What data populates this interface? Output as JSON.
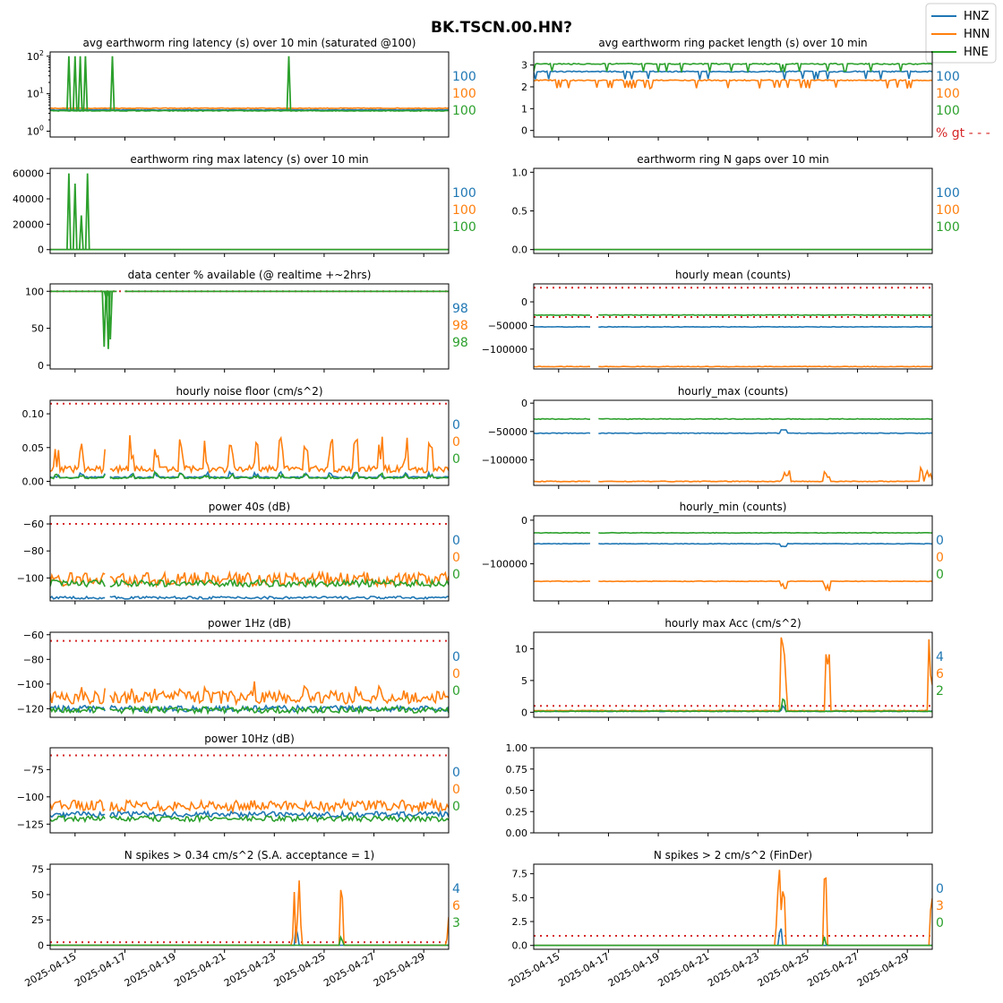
{
  "figure": {
    "title": "BK.TSCN.00.HN?",
    "legend": {
      "placement": "top-right",
      "entries": [
        {
          "name": "HNZ",
          "color": "#1f77b4"
        },
        {
          "name": "HNN",
          "color": "#ff7f0e"
        },
        {
          "name": "HNE",
          "color": "#2ca02c"
        }
      ]
    },
    "x_tick_labels": [
      "2025-04-15",
      "2025-04-17",
      "2025-04-19",
      "2025-04-21",
      "2025-04-23",
      "2025-04-25",
      "2025-04-27",
      "2025-04-29"
    ],
    "colors": {
      "threshold": "#d62728",
      "series": [
        "#1f77b4",
        "#ff7f0e",
        "#2ca02c"
      ]
    }
  },
  "chart_data": [
    {
      "id": "p1",
      "type": "line",
      "title": "avg earthworm ring latency (s)   over 10 min (saturated @100)",
      "yscale": "log",
      "ylim": [
        0.7,
        130
      ],
      "yticks": [
        1,
        10,
        100
      ],
      "ytick_labels": [
        "10^0",
        "10^1",
        "10^2"
      ],
      "xlim": [
        "2025-04-14",
        "2025-04-30"
      ],
      "series": [
        {
          "name": "HNZ",
          "baseline": 3.7
        },
        {
          "name": "HNN",
          "baseline": 4.1
        },
        {
          "name": "HNE",
          "baseline": 3.5
        }
      ],
      "spikes": [
        {
          "x": "2025-04-14T18:00",
          "y": 100
        },
        {
          "x": "2025-04-15T00:00",
          "y": 100
        },
        {
          "x": "2025-04-15T05:00",
          "y": 100
        },
        {
          "x": "2025-04-15T10:00",
          "y": 100
        },
        {
          "x": "2025-04-16T12:00",
          "y": 100
        },
        {
          "x": "2025-04-23T14:00",
          "y": 100
        }
      ],
      "right_labels": [
        "100",
        "100",
        "100"
      ]
    },
    {
      "id": "p2",
      "type": "line",
      "title": "avg earthworm ring packet length (s)   over 10 min",
      "ylim": [
        -0.3,
        3.6
      ],
      "yticks": [
        0,
        1,
        2,
        3
      ],
      "ytick_labels": [
        "0",
        "1",
        "2",
        "3"
      ],
      "xlim": [
        "2025-04-14",
        "2025-04-30"
      ],
      "series": [
        {
          "name": "HNZ",
          "baseline": 2.7
        },
        {
          "name": "HNN",
          "baseline": 2.3
        },
        {
          "name": "HNE",
          "baseline": 3.05
        }
      ],
      "right_labels": [
        "100",
        "100",
        "100"
      ],
      "extra_label": "% gt - - -"
    },
    {
      "id": "p3",
      "type": "line",
      "title": "earthworm ring max latency (s)   over 10 min",
      "ylim": [
        -3000,
        64000
      ],
      "yticks": [
        0,
        20000,
        40000,
        60000
      ],
      "ytick_labels": [
        "0",
        "20000",
        "40000",
        "60000"
      ],
      "xlim": [
        "2025-04-14",
        "2025-04-30"
      ],
      "series": [
        {
          "name": "HNZ",
          "baseline": 0
        },
        {
          "name": "HNN",
          "baseline": 0
        },
        {
          "name": "HNE",
          "baseline": 0
        }
      ],
      "spikes": [
        {
          "x": "2025-04-14T18:00",
          "y": 60000
        },
        {
          "x": "2025-04-15T00:00",
          "y": 52000
        },
        {
          "x": "2025-04-15T06:00",
          "y": 27000
        },
        {
          "x": "2025-04-15T12:00",
          "y": 60000
        }
      ],
      "right_labels": [
        "100",
        "100",
        "100"
      ]
    },
    {
      "id": "p4",
      "type": "line",
      "title": "earthworm ring N gaps   over 10 min",
      "ylim": [
        -0.05,
        1.05
      ],
      "yticks": [
        0,
        0.5,
        1
      ],
      "ytick_labels": [
        "0.0",
        "0.5",
        "1.0"
      ],
      "xlim": [
        "2025-04-14",
        "2025-04-30"
      ],
      "series": [
        {
          "name": "HNZ",
          "baseline": 0
        },
        {
          "name": "HNN",
          "baseline": 0
        },
        {
          "name": "HNE",
          "baseline": 0
        }
      ],
      "right_labels": [
        "100",
        "100",
        "100"
      ]
    },
    {
      "id": "p5",
      "type": "line",
      "title": "data center % available (@ realtime +~2hrs)",
      "ylim": [
        -5,
        110
      ],
      "yticks": [
        0,
        50,
        100
      ],
      "ytick_labels": [
        "0",
        "50",
        "100"
      ],
      "xlim": [
        "2025-04-14",
        "2025-04-30"
      ],
      "threshold": 100,
      "series": [
        {
          "name": "HNZ",
          "baseline": 100
        },
        {
          "name": "HNN",
          "baseline": 100
        },
        {
          "name": "HNE",
          "baseline": 100
        }
      ],
      "dips": [
        {
          "x": "2025-04-16T04:00",
          "y": 25
        },
        {
          "x": "2025-04-16T06:00",
          "y": 90
        },
        {
          "x": "2025-04-16T08:00",
          "y": 22
        },
        {
          "x": "2025-04-16T10:00",
          "y": 35
        }
      ],
      "right_labels": [
        "98",
        "98",
        "98"
      ]
    },
    {
      "id": "p6",
      "type": "line",
      "title": "hourly mean (counts)",
      "ylim": [
        -142000,
        38000
      ],
      "yticks": [
        -100000,
        -50000,
        0
      ],
      "ytick_labels": [
        "−100000",
        "−50000",
        "0"
      ],
      "xlim": [
        "2025-04-14",
        "2025-04-30"
      ],
      "threshold": [
        30000,
        -32000
      ],
      "series": [
        {
          "name": "HNZ",
          "baseline": -53000
        },
        {
          "name": "HNN",
          "baseline": -137000
        },
        {
          "name": "HNE",
          "baseline": -28000
        }
      ],
      "right_labels": []
    },
    {
      "id": "p7",
      "type": "line",
      "title": "hourly noise floor (cm/s^2)",
      "ylim": [
        -0.006,
        0.12
      ],
      "yticks": [
        0,
        0.05,
        0.1
      ],
      "ytick_labels": [
        "0.00",
        "0.05",
        "0.10"
      ],
      "xlim": [
        "2025-04-14",
        "2025-04-30"
      ],
      "threshold": 0.115,
      "series": [
        {
          "name": "HNZ",
          "baseline": 0.005
        },
        {
          "name": "HNN",
          "baseline": 0.013
        },
        {
          "name": "HNE",
          "baseline": 0.004
        }
      ],
      "right_labels": [
        "0",
        "0",
        "0"
      ]
    },
    {
      "id": "p8",
      "type": "line",
      "title": "hourly_max (counts)",
      "ylim": [
        -145000,
        5000
      ],
      "yticks": [
        -100000,
        -50000,
        0
      ],
      "ytick_labels": [
        "−100000",
        "−50000",
        "0"
      ],
      "xlim": [
        "2025-04-14",
        "2025-04-30"
      ],
      "series": [
        {
          "name": "HNZ",
          "baseline": -53000
        },
        {
          "name": "HNN",
          "baseline": -138000
        },
        {
          "name": "HNE",
          "baseline": -28000
        }
      ],
      "right_labels": []
    },
    {
      "id": "p9",
      "type": "line",
      "title": "power 40s (dB)",
      "ylim": [
        -117,
        -54
      ],
      "yticks": [
        -100,
        -80,
        -60
      ],
      "ytick_labels": [
        "−100",
        "−80",
        "−60"
      ],
      "xlim": [
        "2025-04-14",
        "2025-04-30"
      ],
      "threshold": -60,
      "series": [
        {
          "name": "HNZ",
          "baseline": -115
        },
        {
          "name": "HNN",
          "baseline": -103
        },
        {
          "name": "HNE",
          "baseline": -105
        }
      ],
      "right_labels": [
        "0",
        "0",
        "0"
      ]
    },
    {
      "id": "p10",
      "type": "line",
      "title": "hourly_min (counts)",
      "ylim": [
        -185000,
        10000
      ],
      "yticks": [
        -100000,
        0
      ],
      "ytick_labels": [
        "−100000",
        "0"
      ],
      "xlim": [
        "2025-04-14",
        "2025-04-30"
      ],
      "series": [
        {
          "name": "HNZ",
          "baseline": -54000
        },
        {
          "name": "HNN",
          "baseline": -140000
        },
        {
          "name": "HNE",
          "baseline": -29000
        }
      ],
      "right_labels": [
        "0",
        "0",
        "0"
      ]
    },
    {
      "id": "p11",
      "type": "line",
      "title": "power 1Hz (dB)",
      "ylim": [
        -127,
        -58
      ],
      "yticks": [
        -120,
        -100,
        -80,
        -60
      ],
      "ytick_labels": [
        "−120",
        "−100",
        "−80",
        "−60"
      ],
      "xlim": [
        "2025-04-14",
        "2025-04-30"
      ],
      "threshold": -65,
      "series": [
        {
          "name": "HNZ",
          "baseline": -121
        },
        {
          "name": "HNN",
          "baseline": -113
        },
        {
          "name": "HNE",
          "baseline": -122
        }
      ],
      "right_labels": [
        "0",
        "0",
        "0"
      ]
    },
    {
      "id": "p12",
      "type": "line",
      "title": "hourly max Acc (cm/s^2)",
      "ylim": [
        -0.8,
        12.6
      ],
      "yticks": [
        0,
        5,
        10
      ],
      "ytick_labels": [
        "0",
        "5",
        "10"
      ],
      "xlim": [
        "2025-04-14",
        "2025-04-30"
      ],
      "threshold": 1,
      "series": [
        {
          "name": "HNZ",
          "baseline": 0.1
        },
        {
          "name": "HNN",
          "baseline": 0.2
        },
        {
          "name": "HNE",
          "baseline": 0.1
        }
      ],
      "right_labels": [
        "4",
        "6",
        "2"
      ]
    },
    {
      "id": "p13",
      "type": "line",
      "title": "power 10Hz (dB)",
      "ylim": [
        -133,
        -55
      ],
      "yticks": [
        -125,
        -100,
        -75
      ],
      "ytick_labels": [
        "−125",
        "−100",
        "−75"
      ],
      "xlim": [
        "2025-04-14",
        "2025-04-30"
      ],
      "threshold": -62,
      "series": [
        {
          "name": "HNZ",
          "baseline": -117
        },
        {
          "name": "HNN",
          "baseline": -110
        },
        {
          "name": "HNE",
          "baseline": -121
        }
      ],
      "right_labels": [
        "0",
        "0",
        "0"
      ]
    },
    {
      "id": "p14",
      "type": "empty",
      "title": "",
      "ylim": [
        0,
        1
      ],
      "yticks": [
        0,
        0.25,
        0.5,
        0.75,
        1
      ],
      "ytick_labels": [
        "0.00",
        "0.25",
        "0.50",
        "0.75",
        "1.00"
      ],
      "xlim": [
        "2025-04-14",
        "2025-04-30"
      ],
      "series": [],
      "right_labels": []
    },
    {
      "id": "p15",
      "type": "line",
      "title": "N spikes > 0.34 cm/s^2 (S.A. acceptance = 1)",
      "ylim": [
        -4,
        80
      ],
      "yticks": [
        0,
        25,
        50,
        75
      ],
      "ytick_labels": [
        "0",
        "25",
        "50",
        "75"
      ],
      "xlim": [
        "2025-04-14",
        "2025-04-30"
      ],
      "threshold": 3,
      "series": [
        {
          "name": "HNZ",
          "baseline": 0
        },
        {
          "name": "HNN",
          "baseline": 0
        },
        {
          "name": "HNE",
          "baseline": 0
        }
      ],
      "right_labels": [
        "4",
        "6",
        "3"
      ]
    },
    {
      "id": "p16",
      "type": "line",
      "title": "N spikes > 2 cm/s^2 (FinDer)",
      "ylim": [
        -0.4,
        8.5
      ],
      "yticks": [
        0,
        2.5,
        5,
        7.5
      ],
      "ytick_labels": [
        "0.0",
        "2.5",
        "5.0",
        "7.5"
      ],
      "xlim": [
        "2025-04-14",
        "2025-04-30"
      ],
      "threshold": 1,
      "series": [
        {
          "name": "HNZ",
          "baseline": 0
        },
        {
          "name": "HNN",
          "baseline": 0
        },
        {
          "name": "HNE",
          "baseline": 0
        }
      ],
      "right_labels": [
        "0",
        "3",
        "0"
      ]
    }
  ]
}
